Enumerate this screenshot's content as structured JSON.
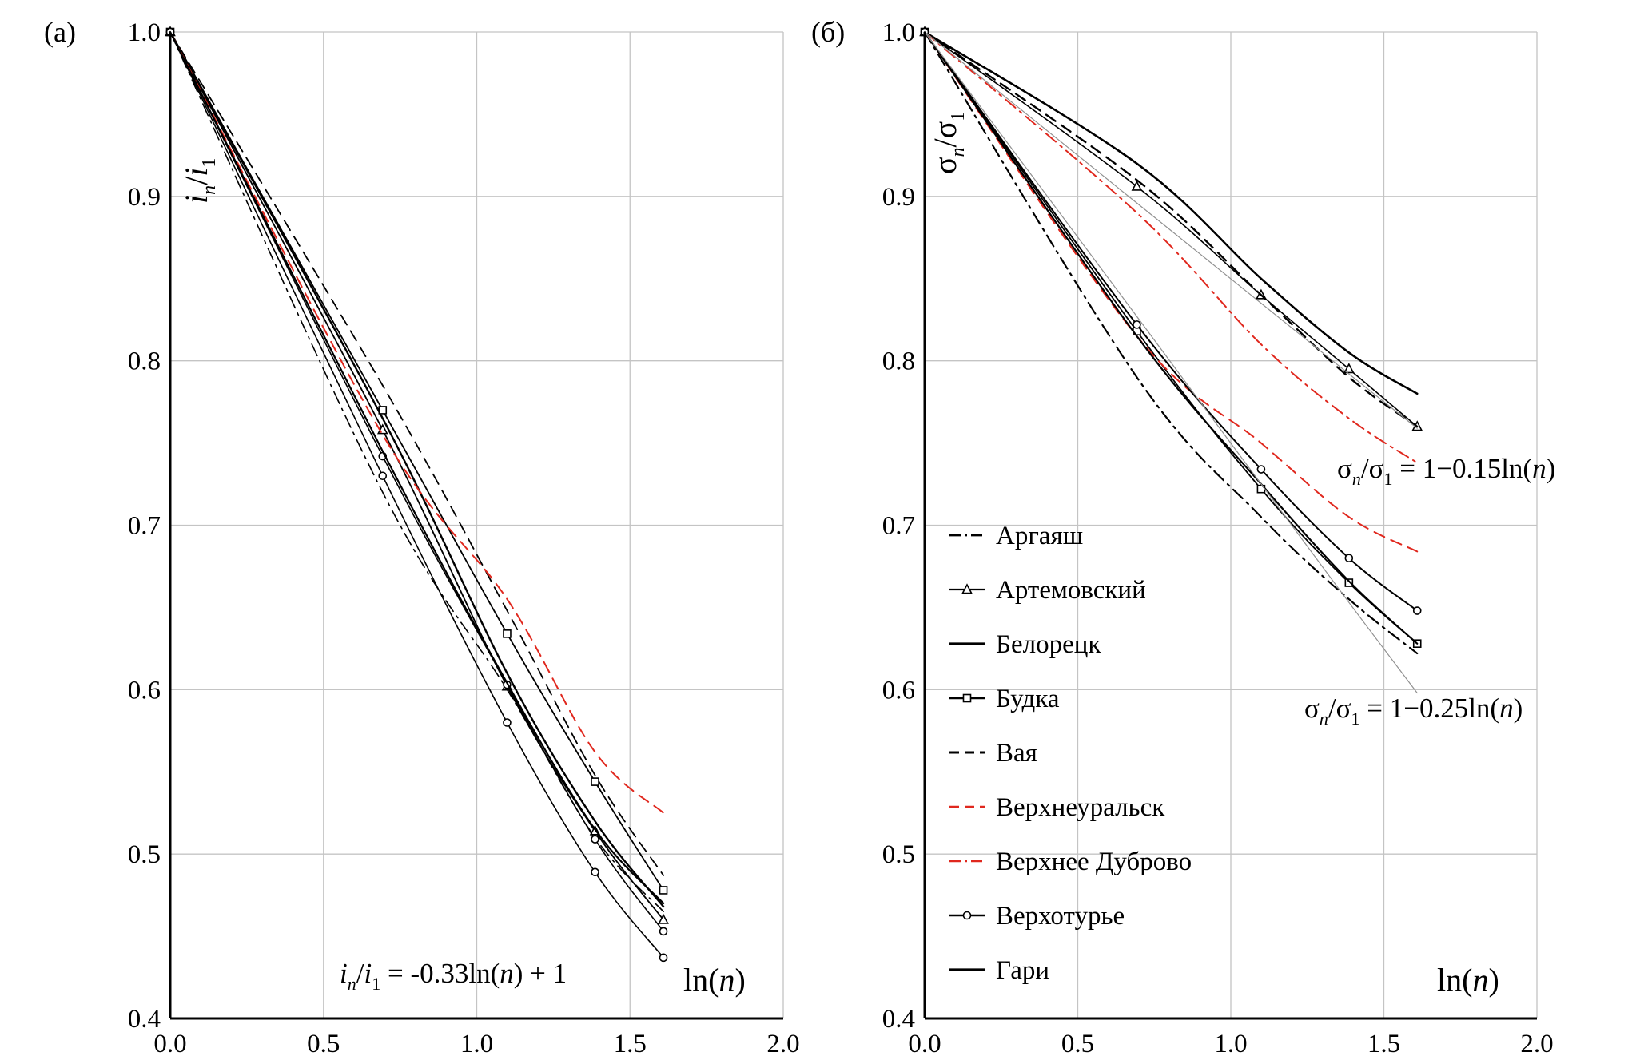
{
  "chart_data": [
    {
      "type": "line",
      "panel_label": "(а)",
      "ylabel": "",
      "ylabel_parts": {
        "a": "i",
        "asub": "n",
        "b": "/",
        "c": "i",
        "csub": "1"
      },
      "xlabel": "ln(n)",
      "xlabel_parts": {
        "pre": "ln(",
        "var": "n",
        "post": ")"
      },
      "xlim": [
        0,
        2.0
      ],
      "ylim": [
        0.4,
        1.0
      ],
      "x_ticks": [
        "0.0",
        "0.5",
        "1.0",
        "1.5",
        "2.0"
      ],
      "y_ticks": [
        "0.4",
        "0.5",
        "0.6",
        "0.7",
        "0.8",
        "0.9",
        "1.0"
      ],
      "grid": true,
      "annotations": [
        {
          "text": "in/i1 = -0.33ln(n) + 1",
          "parts": {
            "a": "i",
            "asub": "n",
            "b": "/",
            "c": "i",
            "csub": "1",
            "d": " = -0.33ln(",
            "e": "n",
            "f": ") + 1"
          }
        }
      ],
      "x": [
        0,
        0.693,
        1.099,
        1.386,
        1.609
      ],
      "series": [
        {
          "name": "Аргаяш",
          "color": "#000000",
          "dash": "dashdot",
          "width": 1.6,
          "marker": "none",
          "values": [
            1.0,
            0.72,
            0.6,
            0.51,
            0.465
          ]
        },
        {
          "name": "Артемовский",
          "color": "#000000",
          "dash": "solid",
          "width": 1.8,
          "marker": "triangle",
          "values": [
            1.0,
            0.758,
            0.602,
            0.514,
            0.46
          ]
        },
        {
          "name": "Белорецк",
          "color": "#000000",
          "dash": "solid",
          "width": 2.4,
          "marker": "none",
          "values": [
            1.0,
            0.765,
            0.61,
            0.52,
            0.468
          ]
        },
        {
          "name": "Будка",
          "color": "#000000",
          "dash": "solid",
          "width": 1.8,
          "marker": "square",
          "values": [
            1.0,
            0.77,
            0.634,
            0.544,
            0.478
          ]
        },
        {
          "name": "Вая",
          "color": "#000000",
          "dash": "dash",
          "width": 1.8,
          "marker": "none",
          "values": [
            1.0,
            0.785,
            0.648,
            0.548,
            0.487
          ]
        },
        {
          "name": "Верхнеуральск",
          "color": "#e0281e",
          "dash": "dash",
          "width": 2.0,
          "marker": "none",
          "values": [
            1.0,
            0.755,
            0.655,
            0.562,
            0.525
          ]
        },
        {
          "name": "Верхотурье",
          "color": "#000000",
          "dash": "solid",
          "width": 1.6,
          "marker": "circle",
          "values": [
            1.0,
            0.73,
            0.58,
            0.489,
            0.437
          ]
        },
        {
          "name": "Верхотурье (2)",
          "color": "#000000",
          "dash": "solid",
          "width": 1.6,
          "marker": "circle",
          "values": [
            1.0,
            0.742,
            0.603,
            0.509,
            0.453
          ]
        },
        {
          "name": "Гари",
          "color": "#000000",
          "dash": "solid",
          "width": 2.2,
          "marker": "none",
          "values": [
            1.0,
            0.745,
            0.604,
            0.515,
            0.47
          ]
        }
      ]
    },
    {
      "type": "line",
      "panel_label": "(б)",
      "ylabel": "",
      "ylabel_parts": {
        "a": "σ",
        "asub": "n",
        "b": "/σ",
        "bsub": "1"
      },
      "xlabel": "ln(n)",
      "xlabel_parts": {
        "pre": "ln(",
        "var": "n",
        "post": ")"
      },
      "xlim": [
        0,
        2.0
      ],
      "ylim": [
        0.4,
        1.0
      ],
      "x_ticks": [
        "0.0",
        "0.5",
        "1.0",
        "1.5",
        "2.0"
      ],
      "y_ticks": [
        "0.4",
        "0.5",
        "0.6",
        "0.7",
        "0.8",
        "0.9",
        "1.0"
      ],
      "grid": true,
      "annotations": [
        {
          "text": "σn/σ1 = 1−0.15ln(n)",
          "parts": {
            "a": "σ",
            "asub": "n",
            "b": "/σ",
            "bsub": "1",
            "d": " = 1−0.15ln(",
            "e": "n",
            "f": ")"
          }
        },
        {
          "text": "σn/σ1 = 1−0.25ln(n)",
          "parts": {
            "a": "σ",
            "asub": "n",
            "b": "/σ",
            "bsub": "1",
            "d": " = 1−0.25ln(",
            "e": "n",
            "f": ")"
          }
        }
      ],
      "x": [
        0,
        0.693,
        1.099,
        1.386,
        1.609
      ],
      "series": [
        {
          "name": "Аргаяш",
          "color": "#000000",
          "dash": "dashdot",
          "width": 2.2,
          "marker": "none",
          "values": [
            1.0,
            0.79,
            0.705,
            0.655,
            0.622
          ]
        },
        {
          "name": "Артемовский",
          "color": "#000000",
          "dash": "solid",
          "width": 1.6,
          "marker": "triangle",
          "values": [
            1.0,
            0.906,
            0.84,
            0.795,
            0.76
          ]
        },
        {
          "name": "Белорецк",
          "color": "#000000",
          "dash": "solid",
          "width": 2.6,
          "marker": "none",
          "values": [
            1.0,
            0.92,
            0.85,
            0.805,
            0.78
          ]
        },
        {
          "name": "Будка",
          "color": "#000000",
          "dash": "solid",
          "width": 1.8,
          "marker": "square",
          "values": [
            1.0,
            0.818,
            0.722,
            0.665,
            0.628
          ]
        },
        {
          "name": "Вая",
          "color": "#000000",
          "dash": "dash",
          "width": 2.4,
          "marker": "none",
          "values": [
            1.0,
            0.91,
            0.84,
            0.79,
            0.76
          ]
        },
        {
          "name": "Верхнеуральск",
          "color": "#e0281e",
          "dash": "dash",
          "width": 2.0,
          "marker": "none",
          "values": [
            1.0,
            0.815,
            0.75,
            0.705,
            0.684
          ]
        },
        {
          "name": "Верхнее Дуброво",
          "color": "#e0281e",
          "dash": "dashdot",
          "width": 2.0,
          "marker": "none",
          "values": [
            1.0,
            0.89,
            0.81,
            0.765,
            0.738
          ]
        },
        {
          "name": "Верхотурье",
          "color": "#000000",
          "dash": "solid",
          "width": 2.0,
          "marker": "circle",
          "values": [
            1.0,
            0.822,
            0.734,
            0.68,
            0.648
          ]
        },
        {
          "name": "Гари",
          "color": "#000000",
          "dash": "solid",
          "width": 2.2,
          "marker": "none",
          "values": [
            1.0,
            0.815,
            0.725,
            0.666,
            0.628
          ]
        },
        {
          "name": "1−0.15ln(n)",
          "color": "#909090",
          "dash": "solid",
          "width": 1.2,
          "marker": "none",
          "values": [
            1.0,
            0.896,
            0.835,
            0.792,
            0.759
          ]
        },
        {
          "name": "1−0.25ln(n)",
          "color": "#909090",
          "dash": "solid",
          "width": 1.2,
          "marker": "none",
          "values": [
            1.0,
            0.827,
            0.725,
            0.653,
            0.598
          ]
        }
      ],
      "legend_position": "center-left",
      "legend": [
        {
          "label": "Аргаяш",
          "color": "#000000",
          "dash": "dashdot",
          "width": 2.2,
          "marker": "none"
        },
        {
          "label": "Артемовский",
          "color": "#000000",
          "dash": "solid",
          "width": 1.6,
          "marker": "triangle"
        },
        {
          "label": "Белорецк",
          "color": "#000000",
          "dash": "solid",
          "width": 2.6,
          "marker": "none"
        },
        {
          "label": "Будка",
          "color": "#000000",
          "dash": "solid",
          "width": 1.8,
          "marker": "square"
        },
        {
          "label": "Вая",
          "color": "#000000",
          "dash": "dash",
          "width": 2.4,
          "marker": "none"
        },
        {
          "label": "Верхнеуральск",
          "color": "#e0281e",
          "dash": "dash",
          "width": 2.0,
          "marker": "none"
        },
        {
          "label": "Верхнее Дуброво",
          "color": "#e0281e",
          "dash": "dashdot",
          "width": 2.0,
          "marker": "none"
        },
        {
          "label": "Верхотурье",
          "color": "#000000",
          "dash": "solid",
          "width": 2.0,
          "marker": "circle"
        },
        {
          "label": "Гари",
          "color": "#000000",
          "dash": "solid",
          "width": 2.6,
          "marker": "none"
        }
      ]
    }
  ]
}
